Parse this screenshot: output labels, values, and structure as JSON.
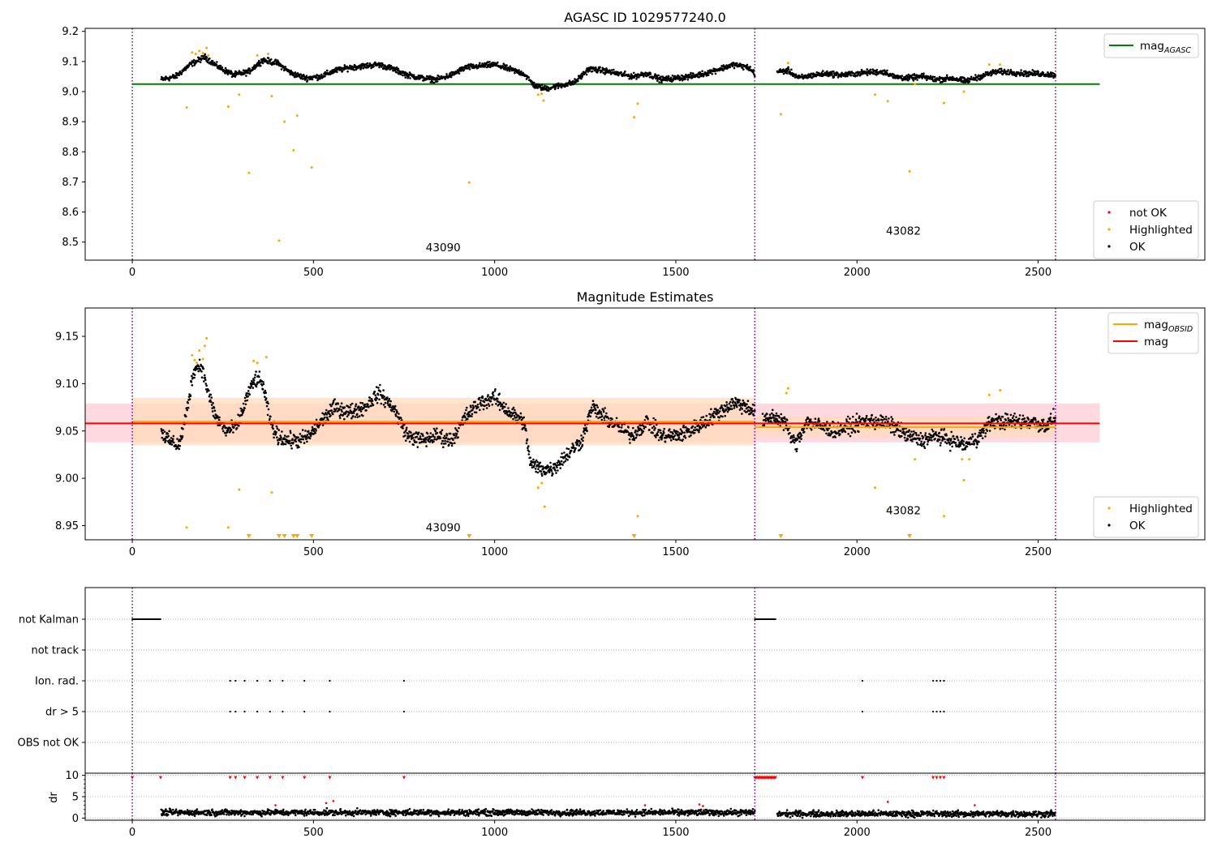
{
  "colors": {
    "ok": "#000000",
    "highlighted": "#ffa500",
    "not_ok": "#ff0000",
    "mag_agasc": "#008000",
    "mag_obsid": "#ffa500",
    "mag": "#ff0000",
    "obs_boundary": "#800080",
    "band_mag": "#ffc0cb",
    "band_obsid": "#ffdab9"
  },
  "chart_data": [
    {
      "type": "scatter",
      "title": "AGASC ID 1029577240.0",
      "xlim": [
        -130,
        2960
      ],
      "ylim": [
        8.44,
        9.21
      ],
      "xticks": [
        "0",
        "500",
        "1000",
        "1500",
        "2000",
        "2500"
      ],
      "yticks": [
        "8.5",
        "8.6",
        "8.7",
        "8.8",
        "8.9",
        "9.0",
        "9.1",
        "9.2"
      ],
      "grid": false,
      "legends": [
        {
          "placement": "upper-right",
          "entries": [
            {
              "name": "mag_AGASC",
              "text_main": "mag",
              "text_sub": "AGASC",
              "marker": "line",
              "color": "#008000"
            }
          ]
        },
        {
          "placement": "lower-right",
          "entries": [
            {
              "name": "not OK",
              "marker": "dot",
              "color": "#ff0000"
            },
            {
              "name": "Highlighted",
              "marker": "dot",
              "color": "#ffa500"
            },
            {
              "name": "OK",
              "marker": "dot",
              "color": "#000000"
            }
          ]
        }
      ],
      "lines": [
        {
          "name": "mag_AGASC",
          "y": 9.025,
          "x_range": [
            0,
            2670
          ]
        }
      ],
      "obsid_boundaries_x": [
        0,
        1718,
        2548
      ],
      "obsid_labels": [
        {
          "text": "43090",
          "x": 810,
          "y": 8.47
        },
        {
          "text": "43082",
          "x": 2080,
          "y": 8.525
        }
      ],
      "series_ok_segments": [
        {
          "x": [
            80,
            120,
            160,
            200,
            240,
            280,
            320,
            360,
            400,
            440,
            480,
            520,
            560,
            600,
            640,
            680,
            720,
            760,
            800,
            840,
            880,
            920,
            960,
            1000,
            1040,
            1080,
            1110,
            1140,
            1180,
            1220,
            1260,
            1300,
            1340,
            1380,
            1420,
            1460,
            1500,
            1540,
            1580,
            1620,
            1660,
            1700,
            1718
          ],
          "y": [
            9.04,
            9.05,
            9.09,
            9.115,
            9.08,
            9.055,
            9.065,
            9.105,
            9.095,
            9.06,
            9.045,
            9.05,
            9.07,
            9.08,
            9.085,
            9.09,
            9.075,
            9.055,
            9.045,
            9.04,
            9.055,
            9.08,
            9.085,
            9.09,
            9.075,
            9.06,
            9.02,
            9.01,
            9.02,
            9.03,
            9.075,
            9.07,
            9.06,
            9.05,
            9.06,
            9.04,
            9.045,
            9.05,
            9.06,
            9.075,
            9.09,
            9.08,
            9.06
          ]
        },
        {
          "x": [
            1780,
            1810,
            1840,
            1880,
            1920,
            1960,
            2000,
            2040,
            2080,
            2100,
            2140,
            2180,
            2220,
            2260,
            2300,
            2340,
            2380,
            2420,
            2460,
            2500,
            2548
          ],
          "y": [
            9.065,
            9.07,
            9.045,
            9.055,
            9.06,
            9.055,
            9.06,
            9.065,
            9.065,
            9.05,
            9.045,
            9.05,
            9.04,
            9.045,
            9.035,
            9.05,
            9.065,
            9.065,
            9.06,
            9.06,
            9.055
          ]
        }
      ],
      "series_ok_noise": 0.008,
      "series_highlighted": [
        [
          150,
          8.947
        ],
        [
          165,
          9.13
        ],
        [
          175,
          9.125
        ],
        [
          185,
          9.135
        ],
        [
          195,
          9.128
        ],
        [
          205,
          9.145
        ],
        [
          210,
          9.12
        ],
        [
          265,
          8.95
        ],
        [
          295,
          8.99
        ],
        [
          322,
          8.73
        ],
        [
          345,
          9.12
        ],
        [
          375,
          9.125
        ],
        [
          385,
          8.985
        ],
        [
          405,
          8.505
        ],
        [
          420,
          8.9
        ],
        [
          445,
          8.805
        ],
        [
          455,
          8.92
        ],
        [
          495,
          8.748
        ],
        [
          930,
          8.698
        ],
        [
          1120,
          8.99
        ],
        [
          1130,
          8.993
        ],
        [
          1135,
          8.97
        ],
        [
          1385,
          8.915
        ],
        [
          1395,
          8.96
        ],
        [
          1790,
          8.925
        ],
        [
          1810,
          9.095
        ],
        [
          2050,
          8.99
        ],
        [
          2085,
          8.968
        ],
        [
          2145,
          8.735
        ],
        [
          2160,
          9.025
        ],
        [
          2240,
          8.962
        ],
        [
          2295,
          9.0
        ],
        [
          2365,
          9.09
        ],
        [
          2395,
          9.09
        ]
      ]
    },
    {
      "type": "scatter",
      "title": "Magnitude Estimates",
      "xlim": [
        -130,
        2960
      ],
      "ylim": [
        8.935,
        9.18
      ],
      "xticks": [
        "0",
        "500",
        "1000",
        "1500",
        "2000",
        "2500"
      ],
      "yticks": [
        "8.95",
        "9.00",
        "9.05",
        "9.10",
        "9.15"
      ],
      "grid": false,
      "legends": [
        {
          "placement": "upper-right",
          "entries": [
            {
              "name": "mag_OBSID",
              "text_main": "mag",
              "text_sub": "OBSID",
              "marker": "line",
              "color": "#ffa500"
            },
            {
              "name": "mag",
              "text_main": "mag",
              "marker": "line",
              "color": "#ff0000"
            }
          ]
        },
        {
          "placement": "lower-right",
          "entries": [
            {
              "name": "Highlighted",
              "marker": "dot",
              "color": "#ffa500"
            },
            {
              "name": "OK",
              "marker": "dot",
              "color": "#000000"
            }
          ]
        }
      ],
      "lines": [
        {
          "name": "mag",
          "y": 9.058,
          "x_range": [
            -130,
            2670
          ],
          "band": [
            9.038,
            9.079
          ]
        },
        {
          "name": "mag_OBSID_43090",
          "y": 9.06,
          "x_range": [
            0,
            1718
          ],
          "band": [
            9.035,
            9.085
          ]
        },
        {
          "name": "mag_OBSID_43082",
          "y": 9.054,
          "x_range": [
            1718,
            2548
          ],
          "band": [
            9.044,
            9.065
          ]
        }
      ],
      "obsid_boundaries_x": [
        0,
        1718,
        2548
      ],
      "obsid_labels": [
        {
          "text": "43090",
          "x": 810,
          "y": 8.944
        },
        {
          "text": "43082",
          "x": 2080,
          "y": 8.962
        }
      ],
      "series_ok_segments": [
        {
          "x": [
            80,
            100,
            130,
            150,
            170,
            190,
            210,
            230,
            260,
            290,
            320,
            340,
            360,
            380,
            400,
            430,
            460,
            490,
            520,
            560,
            600,
            640,
            680,
            720,
            760,
            800,
            840,
            880,
            920,
            960,
            1000,
            1040,
            1080,
            1100,
            1130,
            1160,
            1200,
            1240,
            1270,
            1300,
            1340,
            1380,
            1420,
            1460,
            1500,
            1540,
            1580,
            1620,
            1660,
            1700,
            1718
          ],
          "y": [
            9.05,
            9.04,
            9.035,
            9.07,
            9.115,
            9.12,
            9.09,
            9.065,
            9.05,
            9.055,
            9.09,
            9.105,
            9.1,
            9.06,
            9.045,
            9.04,
            9.04,
            9.045,
            9.06,
            9.075,
            9.07,
            9.075,
            9.09,
            9.075,
            9.045,
            9.04,
            9.045,
            9.04,
            9.065,
            9.08,
            9.085,
            9.07,
            9.06,
            9.015,
            9.01,
            9.01,
            9.025,
            9.04,
            9.075,
            9.065,
            9.055,
            9.045,
            9.06,
            9.045,
            9.045,
            9.05,
            9.06,
            9.07,
            9.08,
            9.075,
            9.07
          ]
        },
        {
          "x": [
            1740,
            1770,
            1800,
            1830,
            1860,
            1900,
            1940,
            1980,
            2020,
            2060,
            2100,
            2140,
            2180,
            2220,
            2260,
            2300,
            2340,
            2370,
            2400,
            2440,
            2480,
            2520,
            2548
          ],
          "y": [
            9.06,
            9.065,
            9.06,
            9.035,
            9.06,
            9.055,
            9.05,
            9.055,
            9.06,
            9.06,
            9.055,
            9.045,
            9.04,
            9.045,
            9.04,
            9.035,
            9.045,
            9.06,
            9.06,
            9.06,
            9.06,
            9.055,
            9.065
          ]
        }
      ],
      "series_ok_noise": 0.007,
      "series_highlighted": [
        [
          150,
          8.948
        ],
        [
          165,
          9.13
        ],
        [
          172,
          9.125
        ],
        [
          178,
          9.122
        ],
        [
          185,
          9.135
        ],
        [
          195,
          9.126
        ],
        [
          200,
          9.14
        ],
        [
          205,
          9.148
        ],
        [
          265,
          8.948
        ],
        [
          295,
          8.988
        ],
        [
          335,
          9.124
        ],
        [
          345,
          9.122
        ],
        [
          370,
          9.128
        ],
        [
          385,
          8.985
        ],
        [
          1120,
          8.99
        ],
        [
          1130,
          8.995
        ],
        [
          1138,
          8.97
        ],
        [
          1395,
          8.96
        ],
        [
          1810,
          9.095
        ],
        [
          1805,
          9.09
        ],
        [
          2050,
          8.99
        ],
        [
          2085,
          8.967
        ],
        [
          2160,
          9.02
        ],
        [
          2240,
          8.96
        ],
        [
          2290,
          9.02
        ],
        [
          2295,
          8.998
        ],
        [
          2310,
          9.02
        ],
        [
          2365,
          9.088
        ],
        [
          2395,
          9.093
        ]
      ],
      "series_offscale_markers_x": [
        322,
        405,
        420,
        445,
        455,
        495,
        930,
        1385,
        1790,
        2145
      ]
    },
    {
      "type": "scatter",
      "title": "",
      "xlim": [
        -130,
        2960
      ],
      "categories": [
        "not Kalman",
        "not track",
        "Ion. rad.",
        "dr > 5",
        "OBS not OK"
      ],
      "flags": {
        "not Kalman": [
          [
            0,
            78
          ],
          [
            1718,
            1775
          ]
        ],
        "not track": [],
        "Ion. rad.": [
          270,
          285,
          310,
          345,
          380,
          415,
          475,
          545,
          750,
          2015,
          2210,
          2220,
          2230,
          2240
        ],
        "dr > 5": [
          270,
          285,
          310,
          345,
          380,
          415,
          475,
          545,
          750,
          2015,
          2210,
          2220,
          2230,
          2240
        ],
        "OBS not OK": []
      },
      "grid": true,
      "obsid_boundaries_x": [
        0,
        1718,
        2548
      ]
    },
    {
      "type": "scatter",
      "title": "",
      "ylabel": "dr",
      "xlim": [
        -130,
        2960
      ],
      "ylim": [
        -0.5,
        10.5
      ],
      "xticks": [
        "0",
        "500",
        "1000",
        "1500",
        "2000",
        "2500"
      ],
      "yticks": [
        "0",
        "5",
        "10"
      ],
      "grid": true,
      "obsid_boundaries_x": [
        0,
        1718,
        2548
      ],
      "clipped_at_10_x": [
        [
          0,
          78
        ],
        [
          270,
          285,
          310,
          345,
          380,
          415,
          475,
          545,
          750
        ],
        [
          [
            1718,
            1775
          ]
        ],
        [
          2015,
          2210,
          2220,
          2230,
          2240
        ]
      ],
      "series_ok_segments": [
        {
          "x": [
            80,
            1718
          ],
          "y": [
            1.3,
            1.3
          ]
        },
        {
          "x": [
            1780,
            2548
          ],
          "y": [
            1.0,
            1.0
          ]
        }
      ],
      "series_ok_noise": 0.6,
      "series_not_ok": [
        [
          395,
          3.0
        ],
        [
          535,
          3.5
        ],
        [
          555,
          4.0
        ],
        [
          1415,
          3.0
        ],
        [
          1565,
          3.2
        ],
        [
          1575,
          2.8
        ],
        [
          2085,
          3.8
        ],
        [
          2325,
          3.0
        ]
      ]
    }
  ],
  "x_tick_values": [
    0,
    500,
    1000,
    1500,
    2000,
    2500
  ]
}
